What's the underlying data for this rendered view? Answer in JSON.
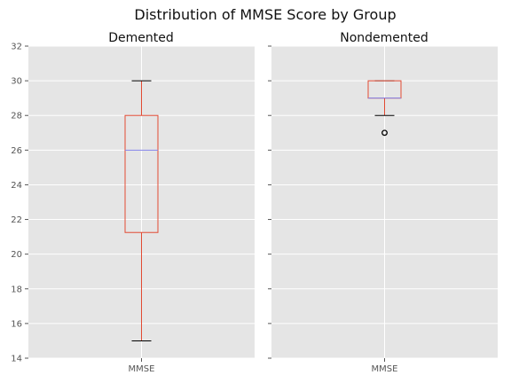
{
  "chart_data": {
    "type": "boxplot",
    "suptitle": "Distribution of MMSE Score by Group",
    "ylim": [
      14,
      32
    ],
    "yticks": [
      14,
      16,
      18,
      20,
      22,
      24,
      26,
      28,
      30,
      32
    ],
    "sharey": true,
    "grid": true,
    "colors": {
      "background": "#E5E5E5",
      "grid": "#FFFFFF",
      "box": "#E24A33",
      "median": "#8080E8",
      "cap": "#000000",
      "tick_text": "#555555"
    },
    "panels": [
      {
        "title": "Demented",
        "category": "MMSE",
        "whisker_low": 15,
        "q1": 21.25,
        "median": 26,
        "q3": 28,
        "whisker_high": 30,
        "outliers": []
      },
      {
        "title": "Nondemented",
        "category": "MMSE",
        "whisker_low": 28,
        "q1": 29,
        "median": 29,
        "q3": 30,
        "whisker_high": 30,
        "outliers": [
          27
        ]
      }
    ]
  }
}
